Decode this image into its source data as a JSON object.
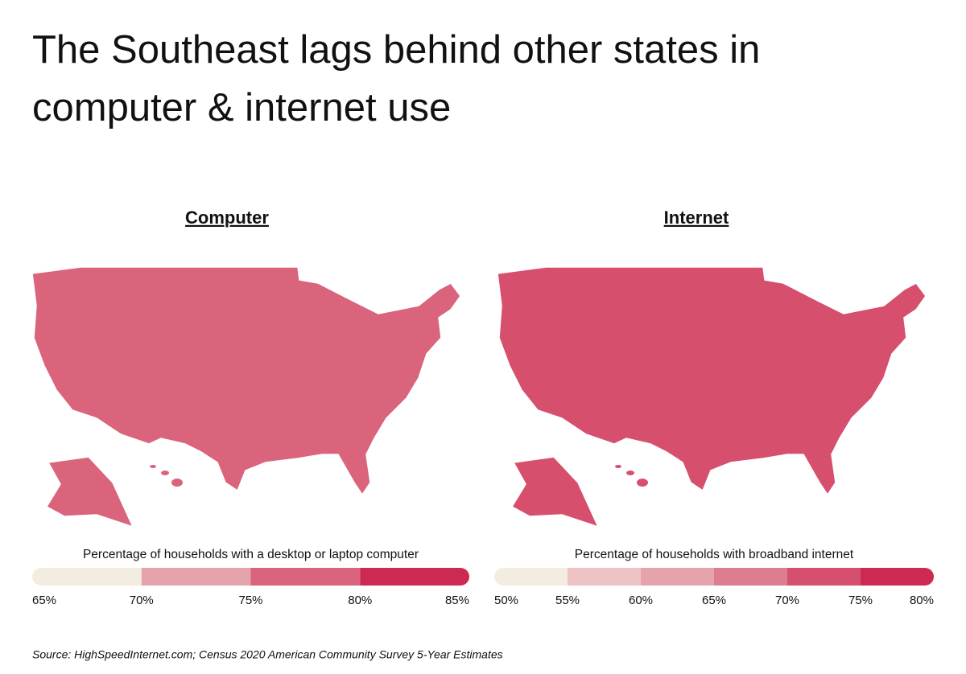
{
  "title": [
    "The Southeast lags behind other states in",
    "computer & internet use"
  ],
  "maps": [
    {
      "subtitle": "Computer",
      "legend_caption": "Percentage of households with a desktop or laptop computer",
      "legend_ticks": [
        {
          "value": 65,
          "label": "65%"
        },
        {
          "value": 70,
          "label": "70%"
        },
        {
          "value": 75,
          "label": "75%"
        },
        {
          "value": 80,
          "label": "80%"
        },
        {
          "value": 85,
          "label": "85%"
        }
      ],
      "legend_colors": [
        "#f3ede0",
        "#e5a3ab",
        "#d9647c",
        "#cc2a53"
      ]
    },
    {
      "subtitle": "Internet",
      "legend_caption": "Percentage of households with broadband internet",
      "legend_ticks": [
        {
          "value": 50,
          "label": "50%"
        },
        {
          "value": 55,
          "label": "55%"
        },
        {
          "value": 60,
          "label": "60%"
        },
        {
          "value": 65,
          "label": "65%"
        },
        {
          "value": 70,
          "label": "70%"
        },
        {
          "value": 75,
          "label": "75%"
        },
        {
          "value": 80,
          "label": "80%"
        }
      ],
      "legend_colors": [
        "#f3ede0",
        "#eec3c6",
        "#e5a3ab",
        "#dc7d90",
        "#d6506e",
        "#cc2a53"
      ]
    }
  ],
  "source": "Source:  HighSpeedInternet.com; Census 2020 American Community Survey 5-Year Estimates"
}
